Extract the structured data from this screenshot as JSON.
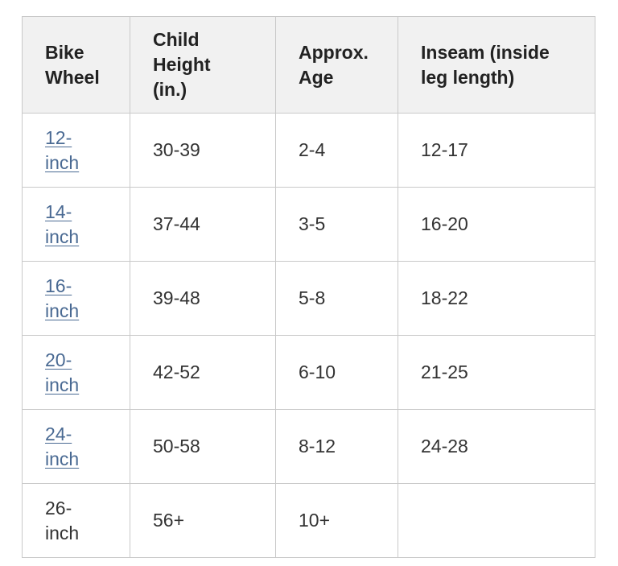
{
  "table": {
    "headers": [
      "Bike Wheel",
      "Child Height (in.)",
      "Approx. Age",
      "Inseam (inside leg length)"
    ],
    "rows": [
      {
        "wheel": "12-inch",
        "is_link": true,
        "height": "30-39",
        "age": "2-4",
        "inseam": "12-17"
      },
      {
        "wheel": "14-inch",
        "is_link": true,
        "height": "37-44",
        "age": "3-5",
        "inseam": "16-20"
      },
      {
        "wheel": "16-inch",
        "is_link": true,
        "height": "39-48",
        "age": "5-8",
        "inseam": "18-22"
      },
      {
        "wheel": "20-inch",
        "is_link": true,
        "height": "42-52",
        "age": "6-10",
        "inseam": "21-25"
      },
      {
        "wheel": "24-inch",
        "is_link": true,
        "height": "50-58",
        "age": "8-12",
        "inseam": "24-28"
      },
      {
        "wheel": "26-inch",
        "is_link": false,
        "height": "56+",
        "age": "10+",
        "inseam": ""
      }
    ]
  },
  "colors": {
    "link": "#4a6a93",
    "header_bg": "#f1f1f1",
    "border": "#c9c9c9",
    "text": "#333333"
  }
}
